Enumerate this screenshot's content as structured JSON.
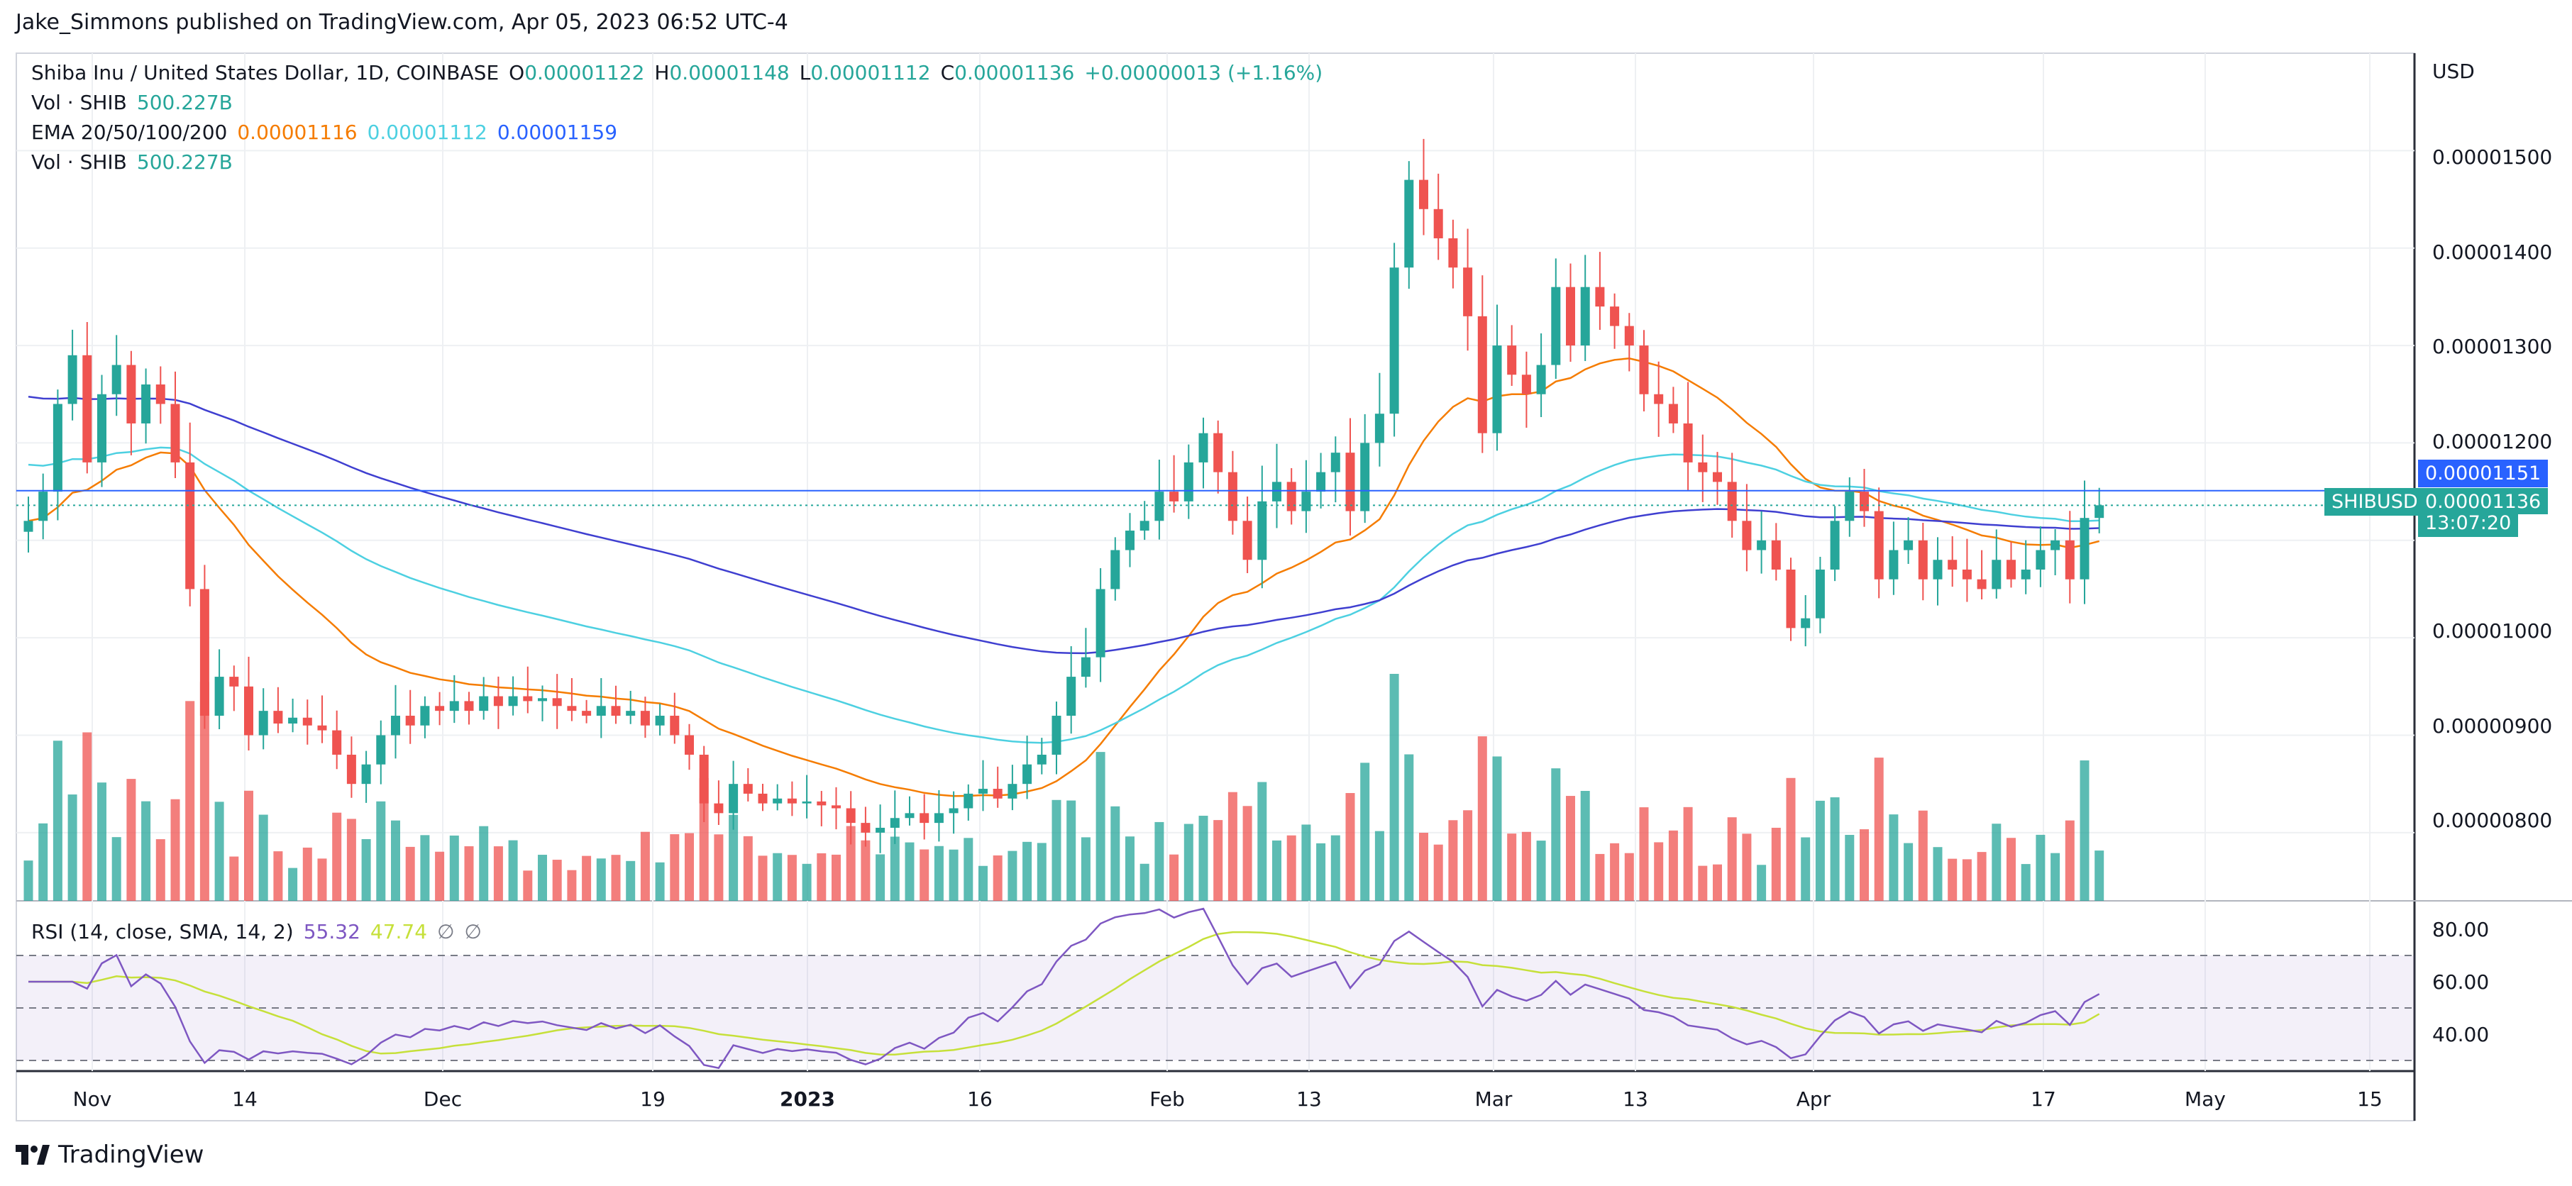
{
  "publish_line": "Jake_Simmons published on TradingView.com, Apr 05, 2023 06:52 UTC-4",
  "header": {
    "symbol": "Shiba Inu / United States Dollar, 1D, COINBASE",
    "ohlc": {
      "o_label": "O",
      "o_value": "0.00001122",
      "h_label": "H",
      "h_value": "0.00001148",
      "l_label": "L",
      "l_value": "0.00001112",
      "c_label": "C",
      "c_value": "0.00001136",
      "change": "+0.00000013 (+1.16%)"
    },
    "vol1": {
      "label": "Vol · SHIB",
      "value": "500.227B"
    },
    "ema": {
      "label": "EMA 20/50/100/200",
      "v20": "0.00001116",
      "v50": "0.00001112",
      "v100": "0.00001159"
    },
    "vol2": {
      "label": "Vol · SHIB",
      "value": "500.227B"
    }
  },
  "price_axis": {
    "currency": "USD",
    "ticks": [
      "0.00001500",
      "0.00001400",
      "0.00001300",
      "0.00001200",
      "0.00001000",
      "0.00000900",
      "0.00000800"
    ],
    "ema_tag": "0.00001151",
    "symbol_tag": "SHIBUSD",
    "last_price_tag": "0.00001136",
    "countdown": "13:07:20"
  },
  "rsi": {
    "label": "RSI (14, close, SMA, 14, 2)",
    "value": "55.32",
    "sma_value": "47.74",
    "symbol1": "∅",
    "symbol2": "∅",
    "ticks": [
      "80.00",
      "60.00",
      "40.00"
    ]
  },
  "time_axis": [
    {
      "label": "Nov",
      "bold": false
    },
    {
      "label": "14",
      "bold": false
    },
    {
      "label": "Dec",
      "bold": false
    },
    {
      "label": "19",
      "bold": false
    },
    {
      "label": "2023",
      "bold": true
    },
    {
      "label": "16",
      "bold": false
    },
    {
      "label": "Feb",
      "bold": false
    },
    {
      "label": "13",
      "bold": false
    },
    {
      "label": "Mar",
      "bold": false
    },
    {
      "label": "13",
      "bold": false
    },
    {
      "label": "Apr",
      "bold": false
    },
    {
      "label": "17",
      "bold": false
    },
    {
      "label": "May",
      "bold": false
    },
    {
      "label": "15",
      "bold": false
    }
  ],
  "brand": "TradingView",
  "colors": {
    "up": "#26a69a",
    "down": "#ef5350",
    "ema20": "#f57c00",
    "ema50": "#4dd0e1",
    "ema100": "#2962ff",
    "ema200": "#3f3fd0",
    "rsi": "#7e57c2",
    "rsi_sma": "#c6e03a",
    "tag_blue": "#2962ff",
    "tag_teal": "#26a69a"
  },
  "chart_data": {
    "type": "candlestick",
    "symbol": "SHIBUSD",
    "interval": "1D",
    "y_unit": "USD",
    "ylim": [
      7.3e-06,
      1.6e-05
    ],
    "x_start": "2022-10-28",
    "last_close": 1.136e-05,
    "closes": [
      1.12e-05,
      1.15e-05,
      1.24e-05,
      1.29e-05,
      1.18e-05,
      1.25e-05,
      1.28e-05,
      1.22e-05,
      1.26e-05,
      1.24e-05,
      1.18e-05,
      1.05e-05,
      9.2e-06,
      9.6e-06,
      9.5e-06,
      9e-06,
      9.25e-06,
      9.12e-06,
      9.18e-06,
      9.1e-06,
      9.05e-06,
      8.8e-06,
      8.5e-06,
      8.7e-06,
      9e-06,
      9.2e-06,
      9.1e-06,
      9.3e-06,
      9.25e-06,
      9.35e-06,
      9.25e-06,
      9.4e-06,
      9.3e-06,
      9.4e-06,
      9.35e-06,
      9.38e-06,
      9.3e-06,
      9.25e-06,
      9.2e-06,
      9.3e-06,
      9.2e-06,
      9.25e-06,
      9.1e-06,
      9.2e-06,
      9e-06,
      8.8e-06,
      8.3e-06,
      8.2e-06,
      8.5e-06,
      8.4e-06,
      8.3e-06,
      8.35e-06,
      8.3e-06,
      8.32e-06,
      8.28e-06,
      8.25e-06,
      8.1e-06,
      8e-06,
      8.05e-06,
      8.15e-06,
      8.2e-06,
      8.1e-06,
      8.2e-06,
      8.25e-06,
      8.4e-06,
      8.45e-06,
      8.35e-06,
      8.5e-06,
      8.7e-06,
      8.8e-06,
      9.2e-06,
      9.6e-06,
      9.8e-06,
      1.05e-05,
      1.09e-05,
      1.11e-05,
      1.12e-05,
      1.15e-05,
      1.14e-05,
      1.18e-05,
      1.21e-05,
      1.17e-05,
      1.12e-05,
      1.08e-05,
      1.14e-05,
      1.16e-05,
      1.13e-05,
      1.15e-05,
      1.17e-05,
      1.19e-05,
      1.13e-05,
      1.2e-05,
      1.23e-05,
      1.38e-05,
      1.47e-05,
      1.44e-05,
      1.41e-05,
      1.38e-05,
      1.33e-05,
      1.21e-05,
      1.3e-05,
      1.27e-05,
      1.25e-05,
      1.28e-05,
      1.36e-05,
      1.3e-05,
      1.36e-05,
      1.34e-05,
      1.32e-05,
      1.3e-05,
      1.25e-05,
      1.24e-05,
      1.22e-05,
      1.18e-05,
      1.17e-05,
      1.16e-05,
      1.12e-05,
      1.09e-05,
      1.1e-05,
      1.07e-05,
      1.01e-05,
      1.02e-05,
      1.07e-05,
      1.12e-05,
      1.15e-05,
      1.13e-05,
      1.06e-05,
      1.09e-05,
      1.1e-05,
      1.06e-05,
      1.08e-05,
      1.07e-05,
      1.06e-05,
      1.05e-05,
      1.08e-05,
      1.06e-05,
      1.07e-05,
      1.09e-05,
      1.1e-05,
      1.06e-05,
      1.123e-05,
      1.136e-05
    ],
    "volume_unit": "SHIB",
    "last_volume": "500.227B",
    "rsi": {
      "period": 14,
      "last": 55.32,
      "sma_last": 47.74,
      "levels": [
        70,
        50,
        30
      ]
    }
  }
}
